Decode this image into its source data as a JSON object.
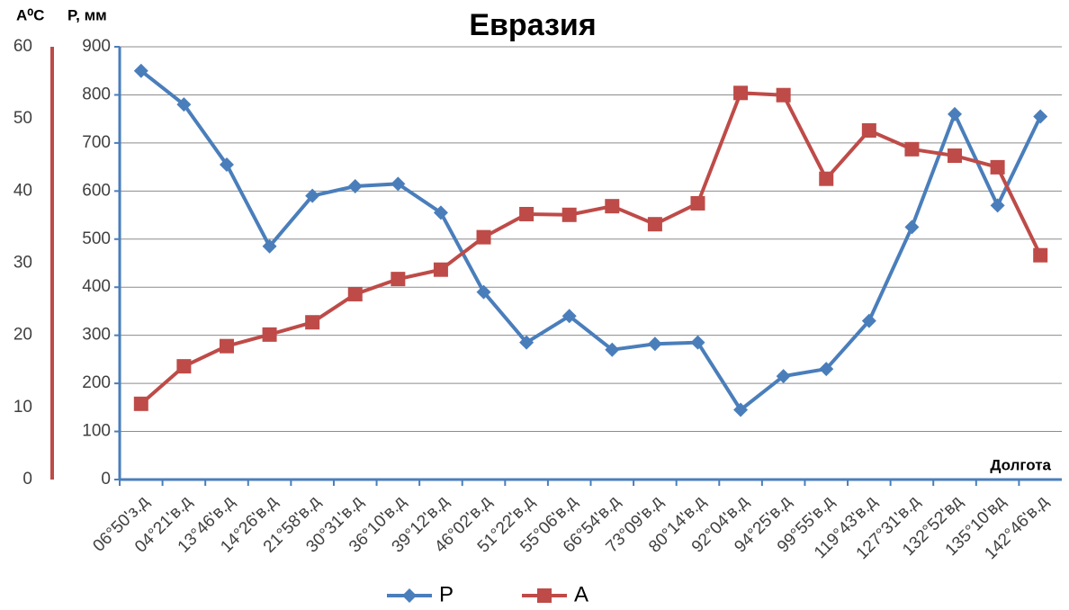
{
  "chart_data": {
    "type": "line",
    "title": "Евразия",
    "x_label": "Долгота",
    "y_label": "P, мм",
    "y2_label": "A⁰C",
    "categories": [
      "06°50'з.д",
      "04°21'в.д",
      "13°46'в.д",
      "14°26'в.д",
      "21°58'в.д",
      "30°31'в.д",
      "36°10'в.д",
      "39°12'в.д",
      "46°02'в.д",
      "51°22'в.д",
      "55°06'в.д",
      "66°54'в.д",
      "73°09'в.д",
      "80°14'в.д",
      "92°04'в.д",
      "94°25'в.д",
      "99°55'в.д",
      "119°43'в.д",
      "127°31'в.д",
      "132°52'вд",
      "135°10'вд",
      "142°46'в.д"
    ],
    "series": [
      {
        "name": "P",
        "color": "#4a7ebb",
        "marker": "diamond",
        "axis": "y",
        "values": [
          850,
          780,
          655,
          485,
          590,
          610,
          615,
          555,
          390,
          285,
          340,
          270,
          282,
          285,
          145,
          215,
          230,
          330,
          525,
          760,
          570,
          755
        ]
      },
      {
        "name": "A",
        "color": "#be4b48",
        "marker": "square",
        "axis": "y2",
        "values": [
          10.5,
          15.7,
          18.5,
          20.1,
          21.8,
          25.7,
          27.8,
          29.1,
          33.6,
          36.8,
          36.7,
          37.9,
          35.4,
          38.3,
          53.6,
          53.3,
          41.7,
          48.4,
          45.8,
          44.9,
          43.3,
          31.1
        ]
      }
    ],
    "ylim": [
      0,
      900
    ],
    "yticks": [
      0,
      100,
      200,
      300,
      400,
      500,
      600,
      700,
      800,
      900
    ],
    "y2lim": [
      0,
      60
    ],
    "y2ticks": [
      0,
      10,
      20,
      30,
      40,
      50,
      60
    ],
    "grid": true,
    "legend": "bottom"
  }
}
